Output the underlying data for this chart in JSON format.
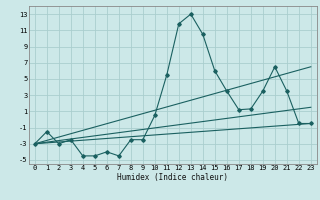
{
  "xlabel": "Humidex (Indice chaleur)",
  "background_color": "#cce8e8",
  "grid_color": "#aacece",
  "line_color": "#1a6060",
  "xlim": [
    -0.5,
    23.5
  ],
  "ylim": [
    -5.5,
    14.0
  ],
  "xticks": [
    0,
    1,
    2,
    3,
    4,
    5,
    6,
    7,
    8,
    9,
    10,
    11,
    12,
    13,
    14,
    15,
    16,
    17,
    18,
    19,
    20,
    21,
    22,
    23
  ],
  "yticks": [
    -5,
    -3,
    -1,
    1,
    3,
    5,
    7,
    9,
    11,
    13
  ],
  "curve_x": [
    0,
    1,
    2,
    3,
    4,
    5,
    6,
    7,
    8,
    9,
    10,
    11,
    12,
    13,
    14,
    15,
    16,
    17,
    18,
    19,
    20,
    21,
    22,
    23
  ],
  "curve_y": [
    -3,
    -1.5,
    -3,
    -2.5,
    -4.5,
    -4.5,
    -4.0,
    -4.5,
    -2.5,
    -2.5,
    0.5,
    5.5,
    11.8,
    13,
    10.5,
    6.0,
    3.5,
    1.2,
    1.3,
    3.5,
    6.5,
    3.5,
    -0.5,
    -0.5
  ],
  "line1_x": [
    0,
    23
  ],
  "line1_y": [
    -3,
    -0.5
  ],
  "line2_x": [
    0,
    23
  ],
  "line2_y": [
    -3,
    1.5
  ],
  "line3_x": [
    0,
    23
  ],
  "line3_y": [
    -3,
    6.5
  ]
}
